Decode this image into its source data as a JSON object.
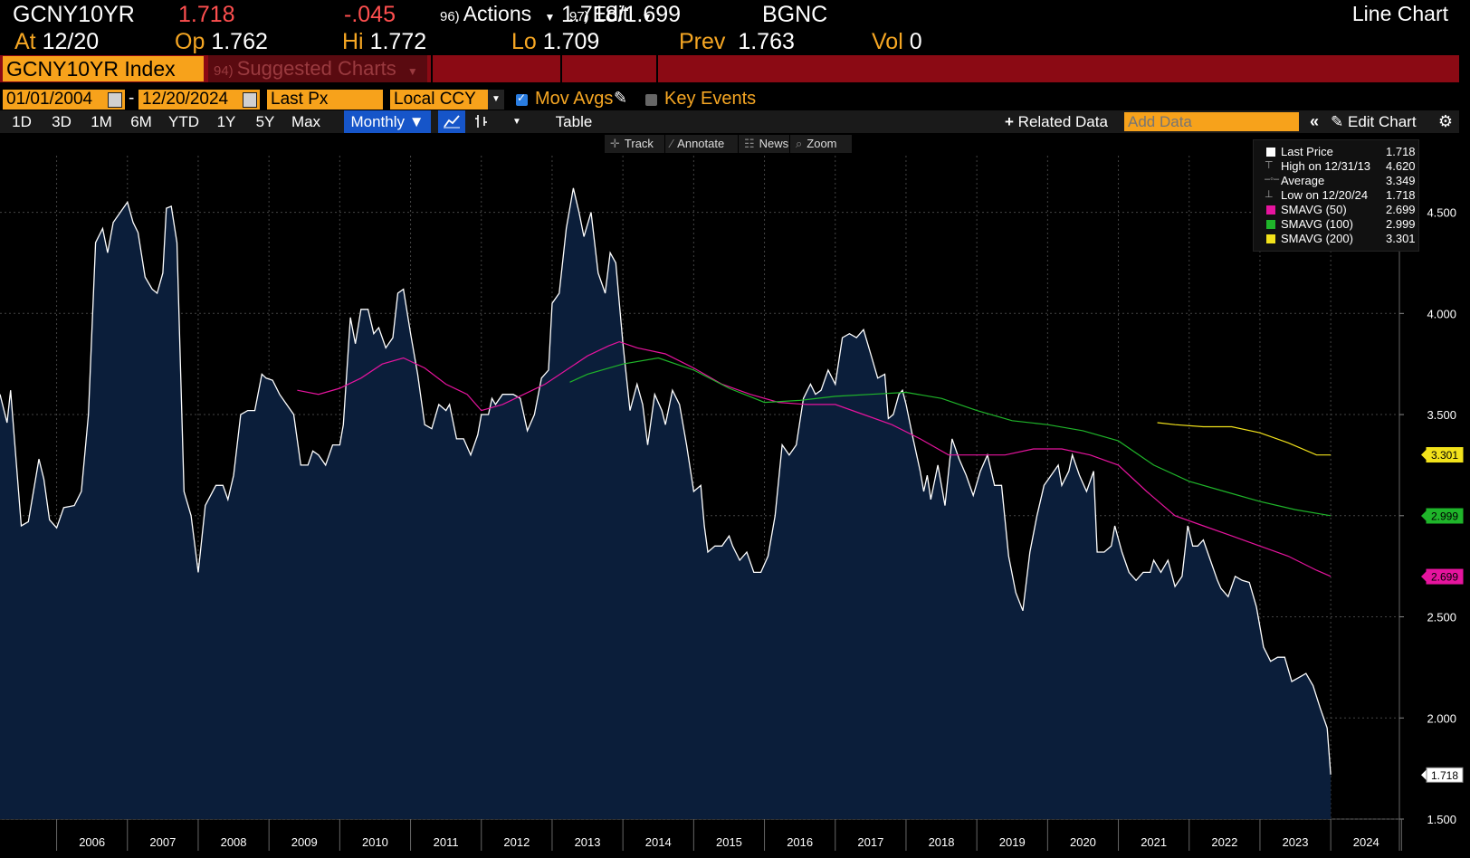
{
  "quote": {
    "ticker": "GCNY10YR",
    "last": "1.718",
    "change": "-.045",
    "bidask": "1.718",
    "bidask_sep": "/",
    "ask": "1.699",
    "source": "BGNC",
    "at_label": "At",
    "at_value": "12/20",
    "op_label": "Op",
    "op_value": "1.762",
    "hi_label": "Hi",
    "hi_value": "1.772",
    "lo_label": "Lo",
    "lo_value": "1.709",
    "prev_label": "Prev",
    "prev_value": "1.763",
    "vol_label": "Vol",
    "vol_value": "0"
  },
  "menu": {
    "security": "GCNY10YR Index",
    "suggested_num": "94)",
    "suggested": "Suggested Charts",
    "actions_num": "96)",
    "actions": "Actions",
    "edit_num": "97)",
    "edit": "Edit",
    "chart_type": "Line Chart"
  },
  "settings": {
    "start_date": "01/01/2004",
    "dash": "-",
    "end_date": "12/20/2024",
    "field": "Last Px",
    "currency": "Local CCY",
    "mov_avgs": "Mov Avgs",
    "key_events": "Key Events"
  },
  "ranges": [
    "1D",
    "3D",
    "1M",
    "6M",
    "YTD",
    "1Y",
    "5Y",
    "Max"
  ],
  "period": "Monthly",
  "table_label": "Table",
  "related_data": "Related Data",
  "add_data_placeholder": "Add Data",
  "edit_chart": "Edit Chart",
  "tools": [
    "Track",
    "Annotate",
    "News",
    "Zoom"
  ],
  "colors": {
    "price": "#ffffff",
    "fill": "#0b1e3a",
    "sma50": "#e6149e",
    "sma100": "#1fb52a",
    "sma200": "#f2e21b",
    "orange": "#f7a21b",
    "menu": "#8b0a14"
  },
  "legend": [
    {
      "label": "Last Price",
      "value": "1.718"
    },
    {
      "label": "High on 12/31/13",
      "value": "4.620"
    },
    {
      "label": "Average",
      "value": "3.349"
    },
    {
      "label": "Low on 12/20/24",
      "value": "1.718"
    },
    {
      "label": "SMAVG (50)",
      "value": "2.699"
    },
    {
      "label": "SMAVG (100)",
      "value": "2.999"
    },
    {
      "label": "SMAVG (200)",
      "value": "3.301"
    }
  ],
  "last_tags": {
    "price": "1.718",
    "sma200": "3.301",
    "sma100": "2.999",
    "sma50": "2.699"
  },
  "chart_data": {
    "type": "line",
    "y_ticks": [
      "4.500",
      "4.000",
      "3.500",
      "3.000",
      "2.500",
      "2.000",
      "1.500"
    ],
    "x_ticks": [
      "2006",
      "2007",
      "2008",
      "2009",
      "2010",
      "2011",
      "2012",
      "2013",
      "2014",
      "2015",
      "2016",
      "2017",
      "2018",
      "2019",
      "2020",
      "2021",
      "2022",
      "2023",
      "2024"
    ],
    "ylim": [
      1.5,
      4.78
    ],
    "xlim": [
      2005.2,
      2024.97
    ],
    "price": [
      [
        2005.2,
        3.6
      ],
      [
        2005.3,
        3.46
      ],
      [
        2005.35,
        3.62
      ],
      [
        2005.5,
        2.95
      ],
      [
        2005.6,
        2.97
      ],
      [
        2005.75,
        3.28
      ],
      [
        2005.82,
        3.18
      ],
      [
        2005.9,
        2.98
      ],
      [
        2006.0,
        2.94
      ],
      [
        2006.1,
        3.04
      ],
      [
        2006.25,
        3.05
      ],
      [
        2006.35,
        3.12
      ],
      [
        2006.45,
        3.5
      ],
      [
        2006.55,
        4.35
      ],
      [
        2006.65,
        4.42
      ],
      [
        2006.72,
        4.3
      ],
      [
        2006.8,
        4.45
      ],
      [
        2006.9,
        4.5
      ],
      [
        2007.0,
        4.55
      ],
      [
        2007.08,
        4.45
      ],
      [
        2007.15,
        4.4
      ],
      [
        2007.25,
        4.18
      ],
      [
        2007.35,
        4.12
      ],
      [
        2007.42,
        4.1
      ],
      [
        2007.5,
        4.2
      ],
      [
        2007.55,
        4.52
      ],
      [
        2007.62,
        4.53
      ],
      [
        2007.7,
        4.35
      ],
      [
        2007.8,
        3.12
      ],
      [
        2007.9,
        3.0
      ],
      [
        2008.0,
        2.72
      ],
      [
        2008.1,
        3.05
      ],
      [
        2008.25,
        3.15
      ],
      [
        2008.35,
        3.15
      ],
      [
        2008.42,
        3.08
      ],
      [
        2008.5,
        3.2
      ],
      [
        2008.6,
        3.5
      ],
      [
        2008.7,
        3.52
      ],
      [
        2008.8,
        3.52
      ],
      [
        2008.9,
        3.7
      ],
      [
        2008.96,
        3.68
      ],
      [
        2009.05,
        3.67
      ],
      [
        2009.15,
        3.6
      ],
      [
        2009.25,
        3.55
      ],
      [
        2009.35,
        3.5
      ],
      [
        2009.45,
        3.25
      ],
      [
        2009.55,
        3.25
      ],
      [
        2009.62,
        3.32
      ],
      [
        2009.7,
        3.3
      ],
      [
        2009.8,
        3.25
      ],
      [
        2009.9,
        3.35
      ],
      [
        2010.0,
        3.35
      ],
      [
        2010.05,
        3.45
      ],
      [
        2010.15,
        3.98
      ],
      [
        2010.22,
        3.85
      ],
      [
        2010.3,
        4.02
      ],
      [
        2010.4,
        4.02
      ],
      [
        2010.48,
        3.9
      ],
      [
        2010.55,
        3.93
      ],
      [
        2010.65,
        3.83
      ],
      [
        2010.75,
        3.88
      ],
      [
        2010.82,
        4.1
      ],
      [
        2010.9,
        4.12
      ],
      [
        2011.0,
        3.9
      ],
      [
        2011.1,
        3.7
      ],
      [
        2011.2,
        3.45
      ],
      [
        2011.3,
        3.43
      ],
      [
        2011.4,
        3.55
      ],
      [
        2011.5,
        3.52
      ],
      [
        2011.55,
        3.55
      ],
      [
        2011.65,
        3.38
      ],
      [
        2011.75,
        3.38
      ],
      [
        2011.85,
        3.3
      ],
      [
        2011.95,
        3.4
      ],
      [
        2012.0,
        3.5
      ],
      [
        2012.1,
        3.5
      ],
      [
        2012.15,
        3.58
      ],
      [
        2012.2,
        3.55
      ],
      [
        2012.3,
        3.6
      ],
      [
        2012.45,
        3.6
      ],
      [
        2012.55,
        3.58
      ],
      [
        2012.65,
        3.42
      ],
      [
        2012.75,
        3.5
      ],
      [
        2012.85,
        3.68
      ],
      [
        2012.95,
        3.72
      ],
      [
        2013.0,
        4.05
      ],
      [
        2013.1,
        4.1
      ],
      [
        2013.2,
        4.42
      ],
      [
        2013.3,
        4.62
      ],
      [
        2013.38,
        4.5
      ],
      [
        2013.45,
        4.38
      ],
      [
        2013.55,
        4.5
      ],
      [
        2013.65,
        4.2
      ],
      [
        2013.75,
        4.1
      ],
      [
        2013.82,
        4.3
      ],
      [
        2013.9,
        4.25
      ],
      [
        2014.0,
        3.85
      ],
      [
        2014.1,
        3.52
      ],
      [
        2014.2,
        3.65
      ],
      [
        2014.28,
        3.55
      ],
      [
        2014.35,
        3.35
      ],
      [
        2014.45,
        3.6
      ],
      [
        2014.55,
        3.52
      ],
      [
        2014.6,
        3.45
      ],
      [
        2014.7,
        3.62
      ],
      [
        2014.8,
        3.55
      ],
      [
        2014.9,
        3.35
      ],
      [
        2015.0,
        3.12
      ],
      [
        2015.1,
        3.15
      ],
      [
        2015.15,
        2.95
      ],
      [
        2015.2,
        2.82
      ],
      [
        2015.3,
        2.85
      ],
      [
        2015.4,
        2.85
      ],
      [
        2015.5,
        2.9
      ],
      [
        2015.55,
        2.85
      ],
      [
        2015.65,
        2.78
      ],
      [
        2015.75,
        2.82
      ],
      [
        2015.85,
        2.72
      ],
      [
        2015.95,
        2.72
      ],
      [
        2016.05,
        2.8
      ],
      [
        2016.15,
        3.0
      ],
      [
        2016.25,
        3.35
      ],
      [
        2016.35,
        3.3
      ],
      [
        2016.45,
        3.35
      ],
      [
        2016.55,
        3.58
      ],
      [
        2016.65,
        3.65
      ],
      [
        2016.72,
        3.6
      ],
      [
        2016.8,
        3.62
      ],
      [
        2016.9,
        3.72
      ],
      [
        2017.0,
        3.65
      ],
      [
        2017.1,
        3.88
      ],
      [
        2017.2,
        3.9
      ],
      [
        2017.3,
        3.88
      ],
      [
        2017.4,
        3.92
      ],
      [
        2017.5,
        3.8
      ],
      [
        2017.6,
        3.68
      ],
      [
        2017.7,
        3.7
      ],
      [
        2017.75,
        3.48
      ],
      [
        2017.82,
        3.5
      ],
      [
        2017.9,
        3.6
      ],
      [
        2017.95,
        3.62
      ],
      [
        2018.0,
        3.55
      ],
      [
        2018.1,
        3.38
      ],
      [
        2018.2,
        3.22
      ],
      [
        2018.25,
        3.12
      ],
      [
        2018.3,
        3.2
      ],
      [
        2018.35,
        3.08
      ],
      [
        2018.45,
        3.25
      ],
      [
        2018.55,
        3.05
      ],
      [
        2018.65,
        3.38
      ],
      [
        2018.75,
        3.28
      ],
      [
        2018.85,
        3.2
      ],
      [
        2018.95,
        3.1
      ],
      [
        2019.05,
        3.22
      ],
      [
        2019.15,
        3.3
      ],
      [
        2019.25,
        3.15
      ],
      [
        2019.35,
        3.15
      ],
      [
        2019.45,
        2.8
      ],
      [
        2019.55,
        2.62
      ],
      [
        2019.65,
        2.53
      ],
      [
        2019.75,
        2.82
      ],
      [
        2019.85,
        3.0
      ],
      [
        2019.95,
        3.15
      ],
      [
        2020.05,
        3.2
      ],
      [
        2020.15,
        3.25
      ],
      [
        2020.2,
        3.15
      ],
      [
        2020.3,
        3.22
      ],
      [
        2020.35,
        3.3
      ],
      [
        2020.45,
        3.2
      ],
      [
        2020.55,
        3.12
      ],
      [
        2020.65,
        3.22
      ],
      [
        2020.7,
        2.82
      ],
      [
        2020.8,
        2.82
      ],
      [
        2020.9,
        2.85
      ],
      [
        2020.95,
        2.95
      ],
      [
        2021.05,
        2.82
      ],
      [
        2021.15,
        2.72
      ],
      [
        2021.25,
        2.68
      ],
      [
        2021.35,
        2.72
      ],
      [
        2021.45,
        2.72
      ],
      [
        2021.5,
        2.78
      ],
      [
        2021.6,
        2.72
      ],
      [
        2021.7,
        2.78
      ],
      [
        2021.8,
        2.65
      ],
      [
        2021.9,
        2.7
      ],
      [
        2021.98,
        2.95
      ],
      [
        2022.05,
        2.85
      ],
      [
        2022.12,
        2.85
      ],
      [
        2022.2,
        2.88
      ],
      [
        2022.3,
        2.78
      ],
      [
        2022.4,
        2.68
      ],
      [
        2022.45,
        2.64
      ],
      [
        2022.55,
        2.6
      ],
      [
        2022.65,
        2.7
      ],
      [
        2022.75,
        2.68
      ],
      [
        2022.85,
        2.67
      ],
      [
        2022.95,
        2.55
      ],
      [
        2023.05,
        2.35
      ],
      [
        2023.15,
        2.28
      ],
      [
        2023.25,
        2.3
      ],
      [
        2023.35,
        2.3
      ],
      [
        2023.45,
        2.18
      ],
      [
        2023.55,
        2.2
      ],
      [
        2023.65,
        2.22
      ],
      [
        2023.75,
        2.16
      ],
      [
        2023.85,
        2.05
      ],
      [
        2023.95,
        1.95
      ],
      [
        2024.0,
        1.72
      ]
    ],
    "sma50": [
      [
        2009.4,
        3.62
      ],
      [
        2009.7,
        3.6
      ],
      [
        2010.0,
        3.63
      ],
      [
        2010.3,
        3.68
      ],
      [
        2010.6,
        3.75
      ],
      [
        2010.9,
        3.78
      ],
      [
        2011.2,
        3.73
      ],
      [
        2011.5,
        3.65
      ],
      [
        2011.8,
        3.6
      ],
      [
        2012.0,
        3.52
      ],
      [
        2012.3,
        3.55
      ],
      [
        2012.6,
        3.6
      ],
      [
        2012.9,
        3.65
      ],
      [
        2013.2,
        3.72
      ],
      [
        2013.5,
        3.79
      ],
      [
        2013.8,
        3.84
      ],
      [
        2013.95,
        3.86
      ],
      [
        2014.2,
        3.83
      ],
      [
        2014.6,
        3.8
      ],
      [
        2015.0,
        3.73
      ],
      [
        2015.4,
        3.65
      ],
      [
        2015.8,
        3.6
      ],
      [
        2016.2,
        3.56
      ],
      [
        2016.6,
        3.55
      ],
      [
        2017.0,
        3.55
      ],
      [
        2017.4,
        3.5
      ],
      [
        2017.8,
        3.45
      ],
      [
        2018.2,
        3.38
      ],
      [
        2018.6,
        3.3
      ],
      [
        2019.0,
        3.3
      ],
      [
        2019.4,
        3.3
      ],
      [
        2019.8,
        3.33
      ],
      [
        2020.2,
        3.33
      ],
      [
        2020.6,
        3.3
      ],
      [
        2021.0,
        3.25
      ],
      [
        2021.4,
        3.12
      ],
      [
        2021.8,
        3.0
      ],
      [
        2022.2,
        2.95
      ],
      [
        2022.6,
        2.9
      ],
      [
        2023.0,
        2.85
      ],
      [
        2023.4,
        2.8
      ],
      [
        2023.8,
        2.73
      ],
      [
        2024.0,
        2.7
      ]
    ],
    "sma100": [
      [
        2013.25,
        3.66
      ],
      [
        2013.5,
        3.7
      ],
      [
        2014.0,
        3.75
      ],
      [
        2014.5,
        3.78
      ],
      [
        2015.0,
        3.72
      ],
      [
        2015.5,
        3.63
      ],
      [
        2016.0,
        3.56
      ],
      [
        2016.5,
        3.57
      ],
      [
        2017.0,
        3.59
      ],
      [
        2017.5,
        3.6
      ],
      [
        2018.0,
        3.61
      ],
      [
        2018.5,
        3.58
      ],
      [
        2019.0,
        3.52
      ],
      [
        2019.5,
        3.47
      ],
      [
        2020.0,
        3.45
      ],
      [
        2020.5,
        3.42
      ],
      [
        2021.0,
        3.37
      ],
      [
        2021.5,
        3.25
      ],
      [
        2022.0,
        3.17
      ],
      [
        2022.5,
        3.12
      ],
      [
        2023.0,
        3.07
      ],
      [
        2023.5,
        3.03
      ],
      [
        2024.0,
        3.0
      ]
    ],
    "sma200": [
      [
        2021.55,
        3.46
      ],
      [
        2021.8,
        3.45
      ],
      [
        2022.2,
        3.44
      ],
      [
        2022.6,
        3.44
      ],
      [
        2023.0,
        3.41
      ],
      [
        2023.4,
        3.36
      ],
      [
        2023.8,
        3.3
      ],
      [
        2024.0,
        3.3
      ]
    ]
  }
}
